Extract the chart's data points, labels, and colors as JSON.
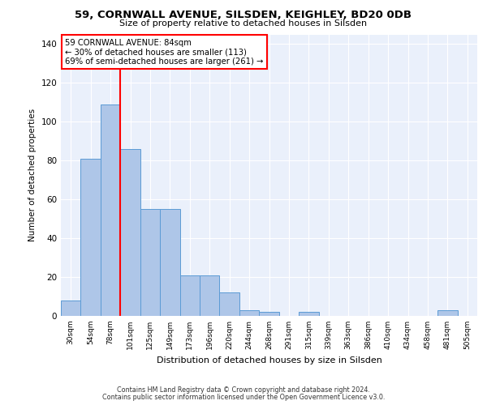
{
  "title1": "59, CORNWALL AVENUE, SILSDEN, KEIGHLEY, BD20 0DB",
  "title2": "Size of property relative to detached houses in Silsden",
  "xlabel": "Distribution of detached houses by size in Silsden",
  "ylabel": "Number of detached properties",
  "categories": [
    "30sqm",
    "54sqm",
    "78sqm",
    "101sqm",
    "125sqm",
    "149sqm",
    "173sqm",
    "196sqm",
    "220sqm",
    "244sqm",
    "268sqm",
    "291sqm",
    "315sqm",
    "339sqm",
    "363sqm",
    "386sqm",
    "410sqm",
    "434sqm",
    "458sqm",
    "481sqm",
    "505sqm"
  ],
  "values": [
    8,
    81,
    109,
    86,
    55,
    55,
    21,
    21,
    12,
    3,
    2,
    0,
    2,
    0,
    0,
    0,
    0,
    0,
    0,
    3,
    0
  ],
  "bar_color": "#aec6e8",
  "bar_edge_color": "#5b9bd5",
  "background_color": "#eaf0fb",
  "vline_x": 2.5,
  "vline_color": "red",
  "annotation_title": "59 CORNWALL AVENUE: 84sqm",
  "annotation_line2": "← 30% of detached houses are smaller (113)",
  "annotation_line3": "69% of semi-detached houses are larger (261) →",
  "annotation_box_color": "white",
  "annotation_box_edge_color": "red",
  "ylim": [
    0,
    145
  ],
  "yticks": [
    0,
    20,
    40,
    60,
    80,
    100,
    120,
    140
  ],
  "footer1": "Contains HM Land Registry data © Crown copyright and database right 2024.",
  "footer2": "Contains public sector information licensed under the Open Government Licence v3.0."
}
